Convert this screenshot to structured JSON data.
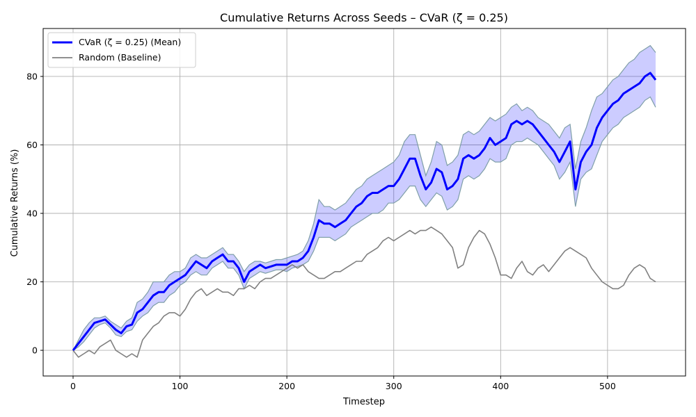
{
  "chart_data": {
    "type": "line",
    "title": "Cumulative Returns Across Seeds – CVaR (ζ = 0.25)",
    "xlabel": "Timestep",
    "ylabel": "Cumulative Returns (%)",
    "xlim": [
      -28,
      573
    ],
    "ylim": [
      -7.5,
      94
    ],
    "x_ticks": [
      0,
      100,
      200,
      300,
      400,
      500
    ],
    "y_ticks": [
      0,
      20,
      40,
      60,
      80
    ],
    "grid": true,
    "legend_position": "top-left",
    "x": [
      0,
      5,
      10,
      15,
      20,
      25,
      30,
      35,
      40,
      45,
      50,
      55,
      60,
      65,
      70,
      75,
      80,
      85,
      90,
      95,
      100,
      105,
      110,
      115,
      120,
      125,
      130,
      135,
      140,
      145,
      150,
      155,
      160,
      165,
      170,
      175,
      180,
      185,
      190,
      195,
      200,
      205,
      210,
      215,
      220,
      225,
      230,
      235,
      240,
      245,
      250,
      255,
      260,
      265,
      270,
      275,
      280,
      285,
      290,
      295,
      300,
      305,
      310,
      315,
      320,
      325,
      330,
      335,
      340,
      345,
      350,
      355,
      360,
      365,
      370,
      375,
      380,
      385,
      390,
      395,
      400,
      405,
      410,
      415,
      420,
      425,
      430,
      435,
      440,
      445,
      450,
      455,
      460,
      465,
      470,
      475,
      480,
      485,
      490,
      495,
      500,
      505,
      510,
      515,
      520,
      525,
      530,
      535,
      540,
      545
    ],
    "series": [
      {
        "name": "CVaR (ζ = 0.25) (Mean)",
        "color": "#0000ff",
        "values": [
          0,
          2,
          4,
          6,
          8,
          8.5,
          9,
          7.5,
          6,
          5,
          7,
          7.5,
          11,
          12,
          14,
          16,
          17,
          17,
          19,
          20,
          21,
          22,
          24,
          26,
          25,
          24,
          26,
          27,
          28,
          26,
          26,
          24,
          20,
          23,
          24,
          25,
          24,
          24.5,
          25,
          25,
          25,
          26,
          26,
          27,
          29,
          33,
          38,
          37,
          37,
          36,
          37,
          38,
          40,
          42,
          43,
          45,
          46,
          46,
          47,
          48,
          48,
          50,
          53,
          56,
          56,
          51,
          47,
          49,
          53,
          52,
          47,
          48,
          50,
          56,
          57,
          56,
          57,
          59,
          62,
          60,
          61,
          62,
          66,
          67,
          66,
          67,
          66,
          64,
          62,
          60,
          58,
          55,
          58,
          61,
          47,
          55,
          58,
          60,
          65,
          68,
          70,
          72,
          73,
          75,
          76,
          77,
          78,
          80,
          81,
          79
        ],
        "upper": [
          0,
          3,
          6,
          8,
          9.5,
          9.5,
          10,
          8.5,
          7.5,
          6.5,
          8.5,
          9.5,
          14,
          15,
          17,
          20,
          20,
          20,
          22,
          23,
          23,
          24,
          27,
          28,
          27,
          27,
          28,
          29,
          30,
          28,
          28,
          26,
          23,
          25,
          26,
          26,
          25.5,
          26,
          26.5,
          26.5,
          27,
          27.5,
          28,
          29,
          32,
          37,
          44,
          42,
          42,
          41,
          42,
          43,
          45,
          47,
          48,
          50,
          51,
          52,
          53,
          54,
          55,
          57,
          61,
          63,
          63,
          57,
          51,
          55,
          61,
          60,
          54,
          55,
          57,
          63,
          64,
          63,
          64,
          66,
          68,
          67,
          68,
          69,
          71,
          72,
          70,
          71,
          70,
          68,
          67,
          66,
          64,
          62,
          65,
          66,
          53,
          61,
          65,
          70,
          74,
          75,
          77,
          79,
          80,
          82,
          84,
          85,
          87,
          88,
          89,
          87
        ],
        "lower": [
          0,
          1,
          2.5,
          4.5,
          6.5,
          7.5,
          8,
          6.5,
          4.5,
          4,
          5.5,
          6,
          8.5,
          10,
          11,
          13,
          14,
          14,
          16,
          17,
          19,
          20,
          22,
          23,
          22,
          22,
          24,
          25,
          26,
          24,
          24,
          22,
          18,
          21,
          22,
          23,
          22.5,
          23,
          23.5,
          23.5,
          23,
          24,
          24.5,
          25,
          26,
          29,
          33,
          33,
          33,
          32,
          33,
          34,
          36,
          37,
          38,
          39,
          40,
          40,
          41,
          43,
          43,
          44,
          46,
          48,
          48,
          44,
          42,
          44,
          46,
          45,
          41,
          42,
          44,
          50,
          51,
          50,
          51,
          53,
          56,
          55,
          55,
          56,
          60,
          61,
          61,
          62,
          61,
          60,
          58,
          56,
          54,
          50,
          52,
          55,
          42,
          50,
          52,
          53,
          57,
          61,
          63,
          65,
          66,
          68,
          69,
          70,
          71,
          73,
          74,
          71
        ]
      },
      {
        "name": "Random (Baseline)",
        "color": "#808080",
        "values": [
          0,
          -2,
          -1,
          0,
          -1,
          1,
          2,
          3,
          0,
          -1,
          -2,
          -1,
          -2,
          3,
          5,
          7,
          8,
          10,
          11,
          11,
          10,
          12,
          15,
          17,
          18,
          16,
          17,
          18,
          17,
          17,
          16,
          18,
          18,
          19,
          18,
          20,
          21,
          21,
          22,
          23,
          24,
          25,
          24,
          25,
          23,
          22,
          21,
          21,
          22,
          23,
          23,
          24,
          25,
          26,
          26,
          28,
          29,
          30,
          32,
          33,
          32,
          33,
          34,
          35,
          34,
          35,
          35,
          36,
          35,
          34,
          32,
          30,
          24,
          25,
          30,
          33,
          35,
          34,
          31,
          27,
          22,
          22,
          21,
          24,
          26,
          23,
          22,
          24,
          25,
          23,
          25,
          27,
          29,
          30,
          29,
          28,
          27,
          24,
          22,
          20,
          19,
          18,
          18,
          19,
          22,
          24,
          25,
          24,
          21,
          20
        ]
      }
    ]
  }
}
